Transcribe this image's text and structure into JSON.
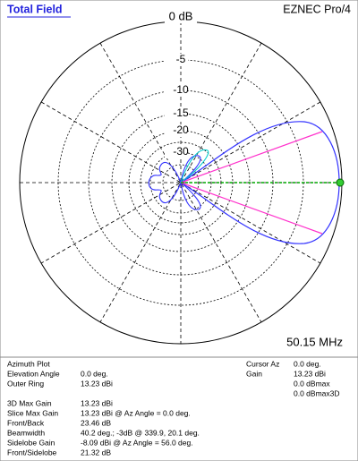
{
  "header": {
    "title": "Total Field",
    "app": "EZNEC Pro/4"
  },
  "plot": {
    "ring_labels": [
      "0 dB",
      "-5",
      "-10",
      "-15",
      "-20",
      "-30"
    ],
    "frequency": "50.15 MHz"
  },
  "info": {
    "left_top": [
      {
        "label": "Azimuth Plot"
      },
      {
        "label": "Elevation Angle",
        "value": "0.0 deg."
      },
      {
        "label": "Outer Ring",
        "value": "13.23 dBi"
      }
    ],
    "left_bottom": [
      {
        "label": "3D Max Gain",
        "value": "13.23 dBi"
      },
      {
        "label": "Slice Max Gain",
        "value": "13.23 dBi @ Az Angle = 0.0 deg."
      },
      {
        "label": "Front/Back",
        "value": "23.46 dB"
      },
      {
        "label": "Beamwidth",
        "value": "40.2 deg.; -3dB @ 339.9, 20.1 deg."
      },
      {
        "label": "Sidelobe Gain",
        "value": "-8.09 dBi @ Az Angle = 56.0 deg."
      },
      {
        "label": "Front/Sidelobe",
        "value": "21.32 dB"
      }
    ],
    "right": [
      {
        "label": "Cursor Az",
        "values": [
          "0.0 deg."
        ]
      },
      {
        "label": "Gain",
        "values": [
          "13.23 dBi",
          "0.0 dBmax",
          "0.0 dBmax3D"
        ]
      }
    ]
  }
}
